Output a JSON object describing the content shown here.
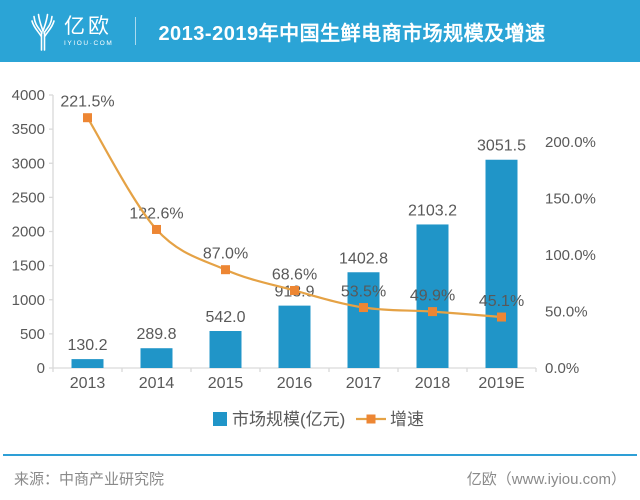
{
  "header": {
    "logo": {
      "name": "亿欧",
      "subtext": "IYIOU·COM"
    },
    "title": "2013-2019年中国生鲜电商市场规模及增速",
    "background_color": "#2BA4D6"
  },
  "chart_data": {
    "type": "bar+line combo",
    "categories": [
      "2013",
      "2014",
      "2015",
      "2016",
      "2017",
      "2018",
      "2019E"
    ],
    "series": [
      {
        "name": "市场规模(亿元)",
        "type": "bar",
        "axis": "left",
        "color": "#2095C8",
        "values": [
          130.2,
          289.8,
          542.0,
          913.9,
          1402.8,
          2103.2,
          3051.5
        ],
        "labels": [
          "130.2",
          "289.8",
          "542.0",
          "913.9",
          "1402.8",
          "2103.2",
          "3051.5"
        ]
      },
      {
        "name": "增速",
        "type": "line",
        "axis": "right",
        "color": "#E5A245",
        "marker_color": "#ED8633",
        "values": [
          221.5,
          122.6,
          87.0,
          68.6,
          53.5,
          49.9,
          45.1
        ],
        "labels": [
          "221.5%",
          "122.6%",
          "87.0%",
          "68.6%",
          "53.5%",
          "49.9%",
          "45.1%"
        ]
      }
    ],
    "left_axis": {
      "min": 0,
      "max": 4000,
      "step": 500,
      "ticks": [
        "0",
        "500",
        "1000",
        "1500",
        "2000",
        "2500",
        "3000",
        "3500",
        "4000"
      ]
    },
    "right_axis": {
      "min": 0,
      "max": 200,
      "step": 50,
      "ticks": [
        "0.0%",
        "50.0%",
        "100.0%",
        "150.0%",
        "200.0%"
      ]
    },
    "legend": [
      "市场规模(亿元)",
      "增速"
    ],
    "legend_position": "bottom",
    "grid": false,
    "label_color": "#595959",
    "axis_color": "#D9D9D9"
  },
  "footer": {
    "source": "来源：中商产业研究院",
    "credit": "亿欧（www.iyiou.com）"
  }
}
